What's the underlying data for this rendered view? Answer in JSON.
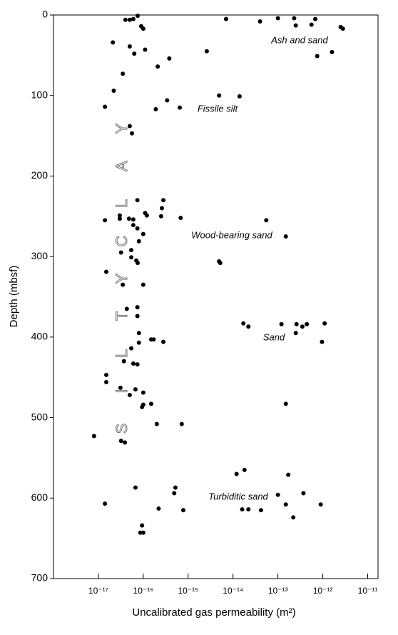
{
  "chart_data": {
    "type": "scatter",
    "x_label": "Uncalibrated gas permeability (m²)",
    "y_label": "Depth (mbsf)",
    "xscale": "log",
    "y_inverted": true,
    "color": "#000000",
    "xlim": [
      1e-18,
      1.7e-11
    ],
    "xticks": [
      {
        "value": 1e-17,
        "label": "10⁻¹⁷"
      },
      {
        "value": 1e-16,
        "label": "10⁻¹⁶"
      },
      {
        "value": 1e-15,
        "label": "10⁻¹⁵"
      },
      {
        "value": 1e-14,
        "label": "10⁻¹⁴"
      },
      {
        "value": 1e-13,
        "label": "10⁻¹³"
      },
      {
        "value": 1e-12,
        "label": "10⁻¹²"
      },
      {
        "value": 1e-11,
        "label": "10⁻¹¹"
      }
    ],
    "ylim": [
      0,
      700
    ],
    "yticks": [
      0,
      100,
      200,
      300,
      400,
      500,
      600,
      700
    ],
    "annotations": [
      "Ash and sand",
      "Fissile silt",
      "Wood-bearing sand",
      "Sand",
      "Turbiditic sand"
    ],
    "vertical_letters": [
      "S",
      "I",
      "L",
      "T",
      "Y",
      "C",
      "L",
      "A",
      "Y"
    ],
    "x": [
      7.5e-17,
      4e-17,
      5e-17,
      6e-17,
      9e-17,
      1e-16,
      7e-15,
      4e-14,
      1e-13,
      2.3e-13,
      2.5e-13,
      5.6e-13,
      6.8e-13,
      2.5e-12,
      2.8e-12,
      1.6e-12,
      7.5e-13,
      2.1e-17,
      5e-17,
      6.3e-17,
      1.1e-16,
      3.8e-16,
      2.1e-16,
      2.6e-15,
      3.5e-17,
      4.9e-15,
      1.4e-14,
      2.2e-17,
      1.4e-17,
      3.4e-16,
      1.9e-16,
      6.5e-16,
      5e-17,
      5.6e-17,
      7.4e-17,
      2.8e-16,
      2.6e-16,
      3e-17,
      3e-17,
      1.4e-17,
      1.1e-16,
      1.2e-16,
      4.8e-17,
      6e-17,
      6e-17,
      7.4e-17,
      2.5e-16,
      6.8e-16,
      5.5e-14,
      1.5e-13,
      1e-16,
      8e-17,
      5.4e-17,
      3.2e-17,
      5.4e-17,
      7e-17,
      7.5e-17,
      4.9e-15,
      5.2e-15,
      1.5e-17,
      3.5e-17,
      1e-16,
      7.4e-17,
      4.3e-17,
      7.4e-17,
      1.7e-14,
      2.2e-14,
      1.2e-13,
      2.6e-13,
      3.5e-13,
      4.4e-13,
      1.1e-12,
      2.5e-13,
      9.6e-13,
      1.5e-13,
      8e-17,
      2.8e-16,
      1.5e-16,
      1.7e-16,
      8e-17,
      5.4e-17,
      3.7e-17,
      6e-17,
      7.4e-17,
      1.5e-17,
      1.5e-17,
      3.1e-17,
      6.7e-17,
      1e-16,
      5e-17,
      1.5e-16,
      1e-16,
      9.4e-17,
      2e-16,
      7.2e-16,
      8e-18,
      3.2e-17,
      3.9e-17,
      1.2e-14,
      1.8e-14,
      1.7e-13,
      6.7e-17,
      5.2e-16,
      4.9e-16,
      1e-13,
      3.7e-13,
      1.4e-17,
      1.5e-13,
      9e-13,
      2.2e-16,
      7.8e-16,
      1.6e-14,
      2.2e-14,
      4.2e-14,
      2.2e-13,
      9.4e-17,
      8.6e-17,
      1e-16
    ],
    "y": [
      1,
      6,
      6,
      5,
      14,
      17,
      5,
      8,
      4,
      4,
      13,
      12,
      5,
      15,
      17,
      46,
      51,
      34,
      39,
      48,
      43,
      54,
      64,
      45,
      73,
      100,
      101,
      94,
      114,
      106,
      117,
      115,
      138,
      147,
      230,
      230,
      240,
      249,
      253,
      255,
      246,
      249,
      253,
      254,
      261,
      265,
      250,
      252,
      255,
      275,
      272,
      281,
      292,
      295,
      301,
      305,
      308,
      306,
      308,
      319,
      335,
      335,
      363,
      365,
      374,
      383,
      387,
      384,
      384,
      387,
      384,
      383,
      395,
      406,
      483,
      395,
      406,
      403,
      403,
      407,
      414,
      430,
      433,
      434,
      447,
      456,
      463,
      465,
      469,
      472,
      483,
      484,
      487,
      508,
      508,
      523,
      529,
      531,
      570,
      565,
      571,
      587,
      587,
      594,
      596,
      594,
      607,
      608,
      608,
      613,
      615,
      614,
      614,
      615,
      624,
      634,
      643,
      643
    ]
  }
}
